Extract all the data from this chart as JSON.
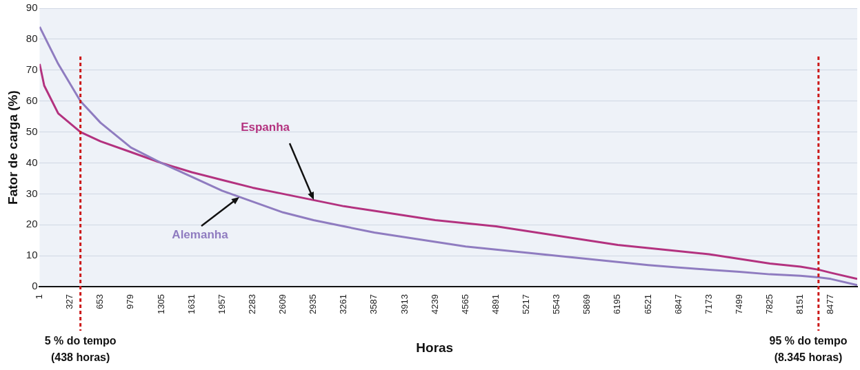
{
  "chart_data": {
    "type": "line",
    "xlabel": "Horas",
    "ylabel": "Fator de carga (%)",
    "xlim": [
      1,
      8760
    ],
    "xticks": [
      1,
      327,
      653,
      979,
      1305,
      1631,
      1957,
      2283,
      2609,
      2935,
      3261,
      3587,
      3913,
      4239,
      4565,
      4891,
      5217,
      5543,
      5869,
      6195,
      6521,
      6847,
      7173,
      7499,
      7825,
      8151,
      8477
    ],
    "ylim": [
      0,
      90
    ],
    "yticks": [
      0,
      10,
      20,
      30,
      40,
      50,
      60,
      70,
      80,
      90
    ],
    "grid": "y",
    "legend": false,
    "series": [
      {
        "name": "Alemanha",
        "color": "#8f7cc0",
        "x": [
          1,
          100,
          200,
          438,
          653,
          979,
          1305,
          1631,
          1957,
          2283,
          2609,
          2935,
          3261,
          3587,
          3913,
          4239,
          4565,
          4891,
          5217,
          5543,
          5869,
          6195,
          6521,
          6847,
          7173,
          7499,
          7825,
          8151,
          8345,
          8477,
          8760
        ],
        "values": [
          84,
          78,
          72,
          60,
          53,
          45,
          40,
          35.5,
          31,
          27.5,
          24,
          21.5,
          19.5,
          17.5,
          16,
          14.5,
          13,
          12,
          11,
          10,
          9,
          8,
          7,
          6.2,
          5.5,
          4.8,
          4,
          3.5,
          3,
          2.5,
          0.5
        ]
      },
      {
        "name": "Espanha",
        "color": "#b3327f",
        "x": [
          1,
          50,
          200,
          438,
          653,
          979,
          1305,
          1631,
          1957,
          2283,
          2609,
          2935,
          3261,
          3587,
          3913,
          4239,
          4565,
          4891,
          5217,
          5543,
          5869,
          6195,
          6521,
          6847,
          7173,
          7499,
          7825,
          8151,
          8345,
          8477,
          8760
        ],
        "values": [
          72,
          65,
          56,
          50,
          47,
          43.5,
          40,
          37,
          34.5,
          32,
          30,
          28,
          26,
          24.5,
          23,
          21.5,
          20.5,
          19.5,
          18,
          16.5,
          15,
          13.5,
          12.5,
          11.5,
          10.5,
          9,
          7.5,
          6.5,
          5.5,
          4.5,
          2.5
        ]
      }
    ],
    "ref_lines": [
      {
        "axis": "x",
        "value": 438,
        "label": "5 % do tempo\n(438 horas)",
        "color": "#cc1a1a",
        "line_style": "dotted"
      },
      {
        "axis": "x",
        "value": 8345,
        "label": "95 % do tempo\n(8.345 horas)",
        "color": "#cc1a1a",
        "line_style": "dotted"
      }
    ]
  }
}
